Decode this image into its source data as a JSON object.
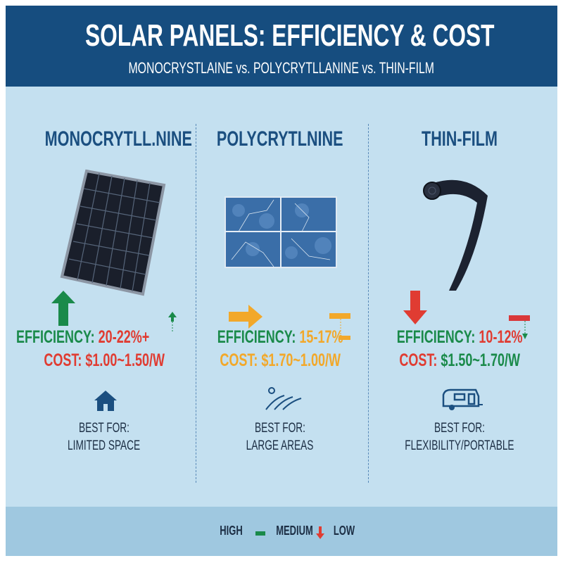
{
  "header": {
    "title": "SOLAR PANELS: EFFICIENCY & COST",
    "subtitle": "MONOCRYSTLAINE vs. POLYCRYTLLANINE vs. THIN-FILM"
  },
  "columns": [
    {
      "name": "MONOCRYTLL.NINE",
      "efficiency_label": "EFFICIENCY:",
      "efficiency_value": "20-22%+",
      "cost_label": "COST:",
      "cost_value": "$1.00~1.50/W",
      "best_for_label": "BEST FOR:",
      "best_for": "LIMITED SPACE",
      "indicator": "up-arrow",
      "indicator_color": "#1a8a4a",
      "best_icon": "house-icon"
    },
    {
      "name": "POLYCRYTLNINE",
      "efficiency_label": "EFFICIENCY:",
      "efficiency_value": "15-17%",
      "cost_label": "COST:",
      "cost_value": "$1.70~1.00/W",
      "best_for_label": "BEST FOR:",
      "best_for": "LARGE AREAS",
      "indicator": "right-arrow",
      "indicator_color": "#f2a82a",
      "best_icon": "field-icon"
    },
    {
      "name": "THIN-FILM",
      "efficiency_label": "EFFICIENCY:",
      "efficiency_value": "10-12%",
      "cost_label": "COST:",
      "cost_value": "$1.50~1.70/W",
      "best_for_label": "BEST FOR:",
      "best_for": "FLEXIBILITY/PORTABLE",
      "indicator": "down-arrow",
      "indicator_color": "#e03c32",
      "best_icon": "camper-icon"
    }
  ],
  "legend": {
    "high": "HIGH",
    "medium": "MEDIUM",
    "low": "LOW"
  },
  "colors": {
    "header": "#164d7f",
    "background": "#c4e0f0",
    "green": "#1a8a4a",
    "orange": "#f2a82a",
    "red": "#e03c32"
  }
}
